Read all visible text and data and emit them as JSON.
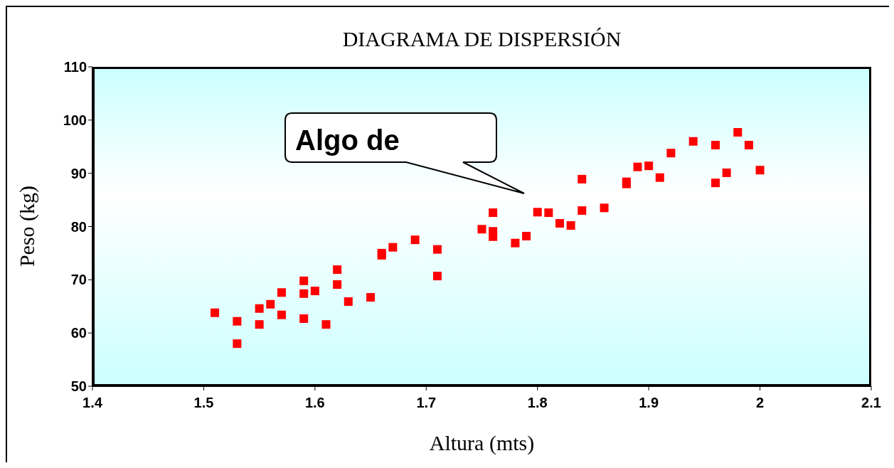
{
  "chart_data": {
    "type": "scatter",
    "title": "DIAGRAMA DE DISPERSIÓN",
    "xlabel": "Altura (mts)",
    "ylabel": "Peso (kg)",
    "x": [
      1.51,
      1.53,
      1.53,
      1.55,
      1.55,
      1.56,
      1.57,
      1.57,
      1.59,
      1.59,
      1.59,
      1.6,
      1.61,
      1.62,
      1.62,
      1.63,
      1.65,
      1.66,
      1.66,
      1.67,
      1.69,
      1.71,
      1.71,
      1.75,
      1.76,
      1.76,
      1.76,
      1.78,
      1.79,
      1.8,
      1.81,
      1.82,
      1.83,
      1.84,
      1.84,
      1.86,
      1.88,
      1.88,
      1.89,
      1.9,
      1.91,
      1.92,
      1.94,
      1.96,
      1.96,
      1.97,
      1.98,
      1.99,
      2.0
    ],
    "values": [
      63.8,
      62.2,
      58.0,
      64.6,
      61.6,
      65.4,
      67.6,
      63.4,
      69.8,
      67.4,
      62.7,
      67.9,
      61.6,
      71.9,
      69.1,
      65.9,
      66.7,
      75.0,
      74.6,
      76.1,
      77.5,
      75.7,
      70.7,
      79.5,
      82.6,
      79.1,
      78.1,
      76.9,
      78.2,
      82.7,
      82.6,
      80.6,
      80.2,
      88.9,
      83.0,
      83.5,
      88.4,
      88.0,
      91.2,
      91.4,
      89.2,
      93.8,
      96.0,
      95.3,
      88.2,
      90.1,
      97.7,
      95.3,
      90.6
    ],
    "color": "#ff0000",
    "marker": "square",
    "xlim": [
      1.4,
      2.1
    ],
    "xticks": [
      1.4,
      1.5,
      1.6,
      1.7,
      1.8,
      1.9,
      2,
      2.1
    ],
    "ylim": [
      50,
      110
    ],
    "yticks": [
      50,
      60,
      70,
      80,
      90,
      100,
      110
    ],
    "annotations": [
      "Algo de"
    ]
  }
}
